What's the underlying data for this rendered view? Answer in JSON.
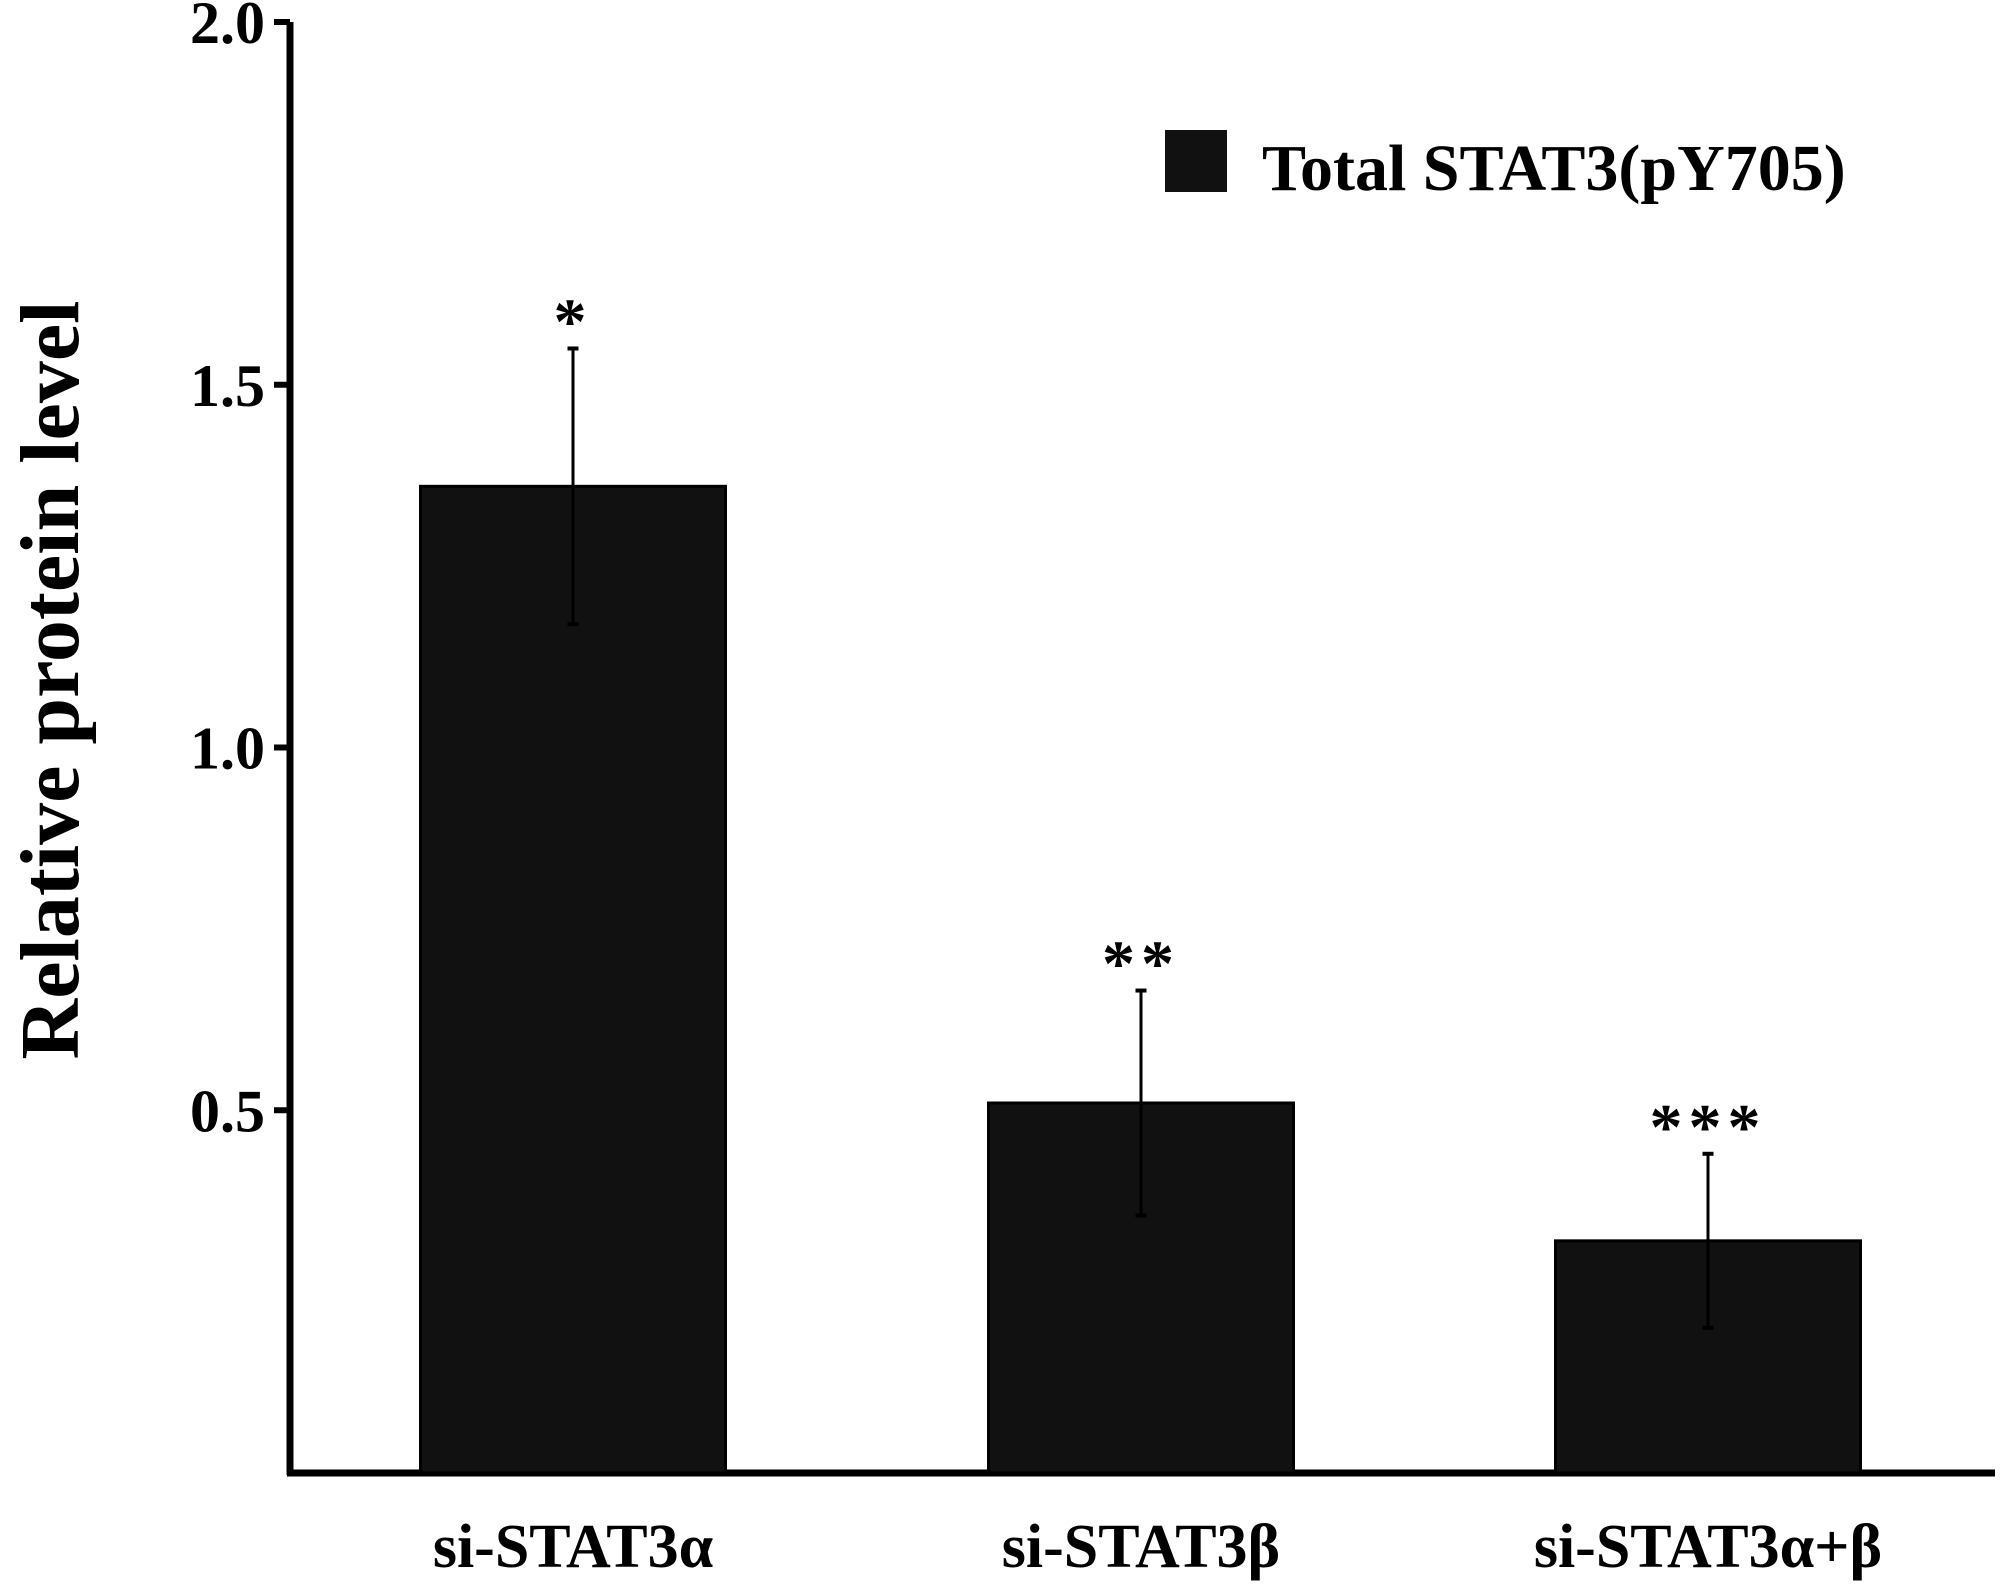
{
  "chart_data": {
    "type": "bar",
    "title": "",
    "xlabel": "",
    "ylabel": "Relative protein level",
    "ylim": [
      0,
      2.0
    ],
    "yticks": [
      0.5,
      1.0,
      1.5,
      2.0
    ],
    "ytick_labels": [
      "0.5",
      "1.0",
      "1.5",
      "2.0"
    ],
    "categories": [
      "si-STAT3α",
      "si-STAT3β",
      "si-STAT3α+β"
    ],
    "series": [
      {
        "name": "Total STAT3(pY705)",
        "color": "#111111",
        "values": [
          1.36,
          0.51,
          0.32
        ],
        "errors": [
          0.19,
          0.155,
          0.12
        ],
        "significance": [
          "*",
          "**",
          "***"
        ]
      }
    ],
    "legend_position": "top-right",
    "grid": false
  }
}
